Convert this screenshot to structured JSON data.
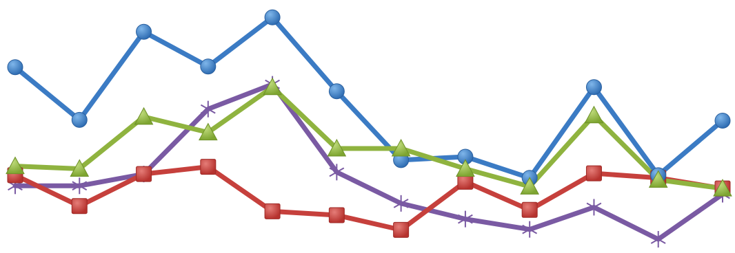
{
  "chart_data": {
    "type": "line",
    "x": [
      1,
      2,
      3,
      4,
      5,
      6,
      7,
      8,
      9,
      10,
      11,
      12
    ],
    "ylim": [
      0,
      100
    ],
    "grid": false,
    "legend": "none",
    "series": [
      {
        "values": [
          75.5,
          53.6,
          90.2,
          75.8,
          96.2,
          65.5,
          36.9,
          38.3,
          29.5,
          67.2,
          30.6,
          53.3
        ],
        "color": "#3b7bc4",
        "marker": "circle"
      },
      {
        "values": [
          30.6,
          17.8,
          31.1,
          34.1,
          15.6,
          14.0,
          7.9,
          27.9,
          16.2,
          31.4,
          29.5,
          25.1
        ],
        "color": "#c6403c",
        "marker": "square"
      },
      {
        "values": [
          34.4,
          33.3,
          54.9,
          48.4,
          67.2,
          41.7,
          41.7,
          33.3,
          25.9,
          55.5,
          28.7,
          25.1
        ],
        "color": "#8fb33f",
        "marker": "triangle"
      },
      {
        "values": [
          26.2,
          26.2,
          31.1,
          58.1,
          68.4,
          31.9,
          18.9,
          12.4,
          8.1,
          17.3,
          4.0,
          22.7
        ],
        "color": "#7a5aa3",
        "marker": "star"
      }
    ]
  }
}
